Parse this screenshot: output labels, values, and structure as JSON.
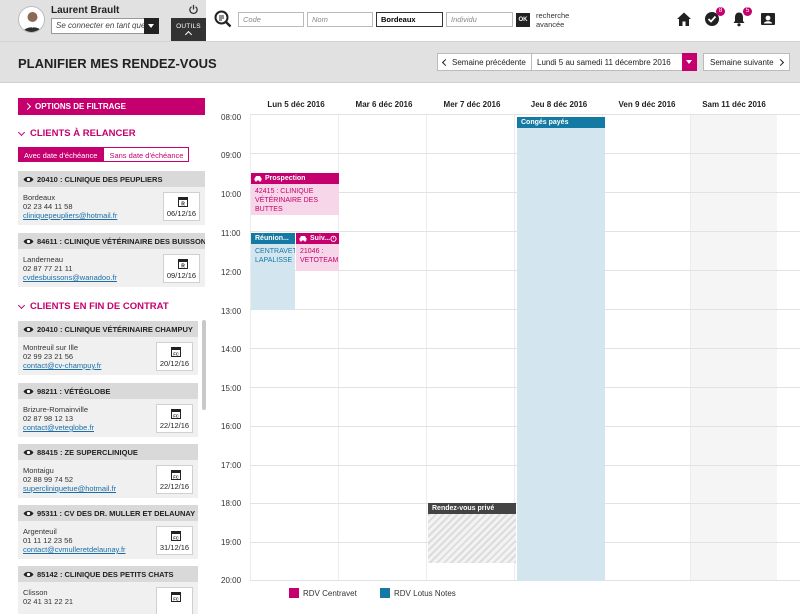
{
  "user": {
    "name": "Laurent Brault",
    "login_as_placeholder": "Se connecter en tant que",
    "tools_label": "OUTILS"
  },
  "search": {
    "code_placeholder": "Code",
    "nom_placeholder": "Nom",
    "city_value": "Bordeaux",
    "individu_placeholder": "Individu",
    "ok_label": "OK",
    "advanced_line1": "recherche",
    "advanced_line2": "avancée"
  },
  "top_icons": {
    "tasks_badge": "8",
    "alerts_badge": "5"
  },
  "header": {
    "title": "PLANIFIER MES RENDEZ-VOUS",
    "prev_week": "Semaine précédente",
    "week_range": "Lundi 5 au samedi 11 décembre 2016",
    "next_week": "Semaine suivante"
  },
  "left": {
    "filter_label": "OPTIONS DE FILTRAGE",
    "section_relancer": "CLIENTS À RELANCER",
    "toggle_on": "Avec date d'échéance",
    "toggle_off": "Sans date d'échéance",
    "relancer_cards": [
      {
        "title": "20410 : CLINIQUE DES PEUPLIERS",
        "city": "Bordeaux",
        "phone": "02 23 44 11 58",
        "email": "cliniquepeupliers@hotmail.fr",
        "date": "06/12/16"
      },
      {
        "title": "84611 : CLINIQUE VÉTÉRINAIRE DES BUISSONS",
        "city": "Landerneau",
        "phone": "02 87 77 21 11",
        "email": "cvdesbuissons@wanadoo.fr",
        "date": "09/12/16"
      }
    ],
    "section_contrat": "CLIENTS EN FIN DE CONTRAT",
    "contrat_cards": [
      {
        "title": "20410 : CLINIQUE VÉTÉRINAIRE CHAMPUY",
        "city": "Montreuil sur Ille",
        "phone": "02 99 23 21 56",
        "email": "contact@cv-champuy.fr",
        "date": "20/12/16"
      },
      {
        "title": "98211 : VÉTÉGLOBE",
        "city": "Brizure-Romainville",
        "phone": "02 87 98 12 13",
        "email": "contact@veteglobe.fr",
        "date": "22/12/16"
      },
      {
        "title": "88415 : ZE SUPERCLINIQUE",
        "city": "Montaigu",
        "phone": "02 88 99 74 52",
        "email": "supercliniquetue@hotmail.fr",
        "date": "22/12/16"
      },
      {
        "title": "95311 : CV DES DR. MULLER ET DELAUNAY",
        "city": "Argenteuil",
        "phone": "01 11 12 23 56",
        "email": "contact@cvmulleretdelaunay.fr",
        "date": "31/12/16"
      },
      {
        "title": "85142 : CLINIQUE DES PETITS CHATS",
        "city": "Clisson",
        "phone": "02 41 31 22 21",
        "email": "",
        "date": ""
      }
    ]
  },
  "calendar": {
    "days": [
      "Lun 5 déc 2016",
      "Mar 6 déc 2016",
      "Mer 7 déc 2016",
      "Jeu 8 déc 2016",
      "Ven 9 déc 2016",
      "Sam 11 déc 2016"
    ],
    "hours": [
      "08:00",
      "09:00",
      "10:00",
      "11:00",
      "12:00",
      "13:00",
      "14:00",
      "15:00",
      "16:00",
      "17:00",
      "18:00",
      "19:00",
      "20:00"
    ],
    "events": {
      "conges": "Congés payés",
      "prospection_title": "Prospection",
      "prospection_line1": "42415 : CLINIQUE",
      "prospection_line2": "VÉTÉRINAIRE DES BUTTES",
      "reunion_title": "Réunion...",
      "reunion_line1": "CENTRAVET",
      "reunion_line2": "LAPALISSE",
      "suivi_title": "Suiv...",
      "suivi_line1": "21046 :",
      "suivi_line2": "VETOTEAM",
      "rdv_prive": "Rendez-vous privé"
    },
    "legend": {
      "centravet": "RDV Centravet",
      "lotus": "RDV Lotus Notes"
    },
    "colors": {
      "centravet": "#c5006e",
      "lotus": "#1479a3"
    }
  }
}
